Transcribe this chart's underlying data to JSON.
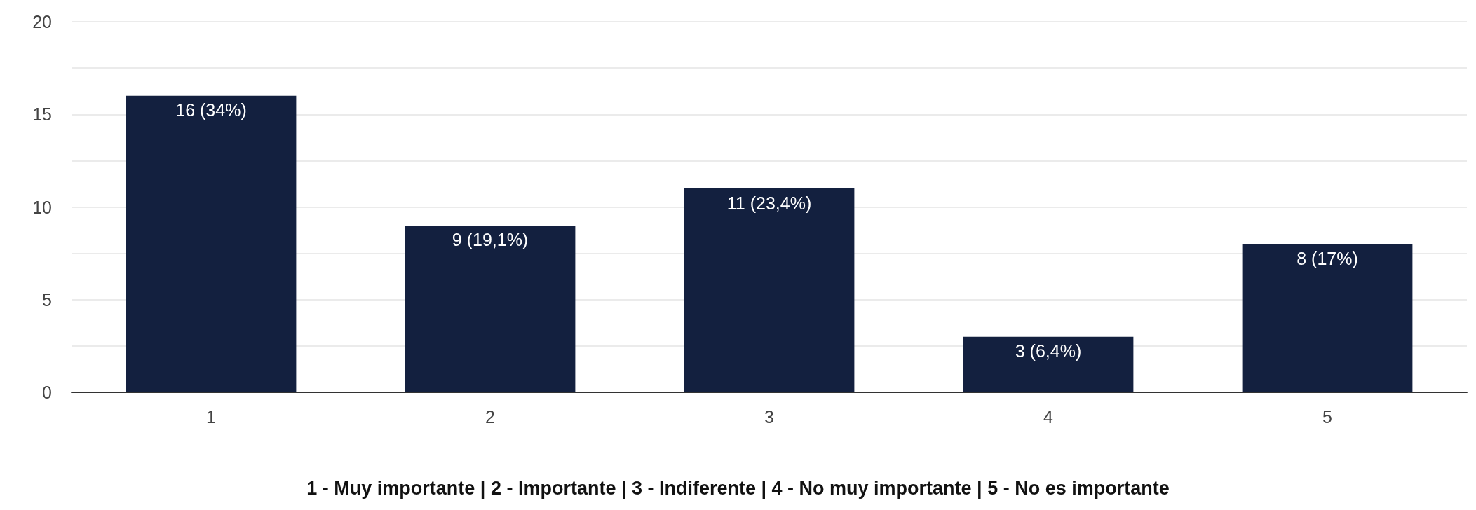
{
  "chart_data": {
    "type": "bar",
    "categories": [
      "1",
      "2",
      "3",
      "4",
      "5"
    ],
    "values": [
      16,
      9,
      11,
      3,
      8
    ],
    "value_labels": [
      "16 (34%)",
      "9 (19,1%)",
      "11 (23,4%)",
      "3 (6,4%)",
      "8 (17%)"
    ],
    "color": "#13203f",
    "ylim": [
      0,
      20
    ],
    "yticks": [
      0,
      {
        "value": 2.5,
        "label": null
      },
      5,
      {
        "value": 7.5,
        "label": null
      },
      10,
      {
        "value": 12.5,
        "label": null
      },
      15,
      {
        "value": 17.5,
        "label": null
      },
      20
    ],
    "grid": "y",
    "annotations": [
      "1 - Muy importante | 2 - Importante | 3 - Indiferente | 4 - No muy importante | 5 - No es importante"
    ]
  }
}
